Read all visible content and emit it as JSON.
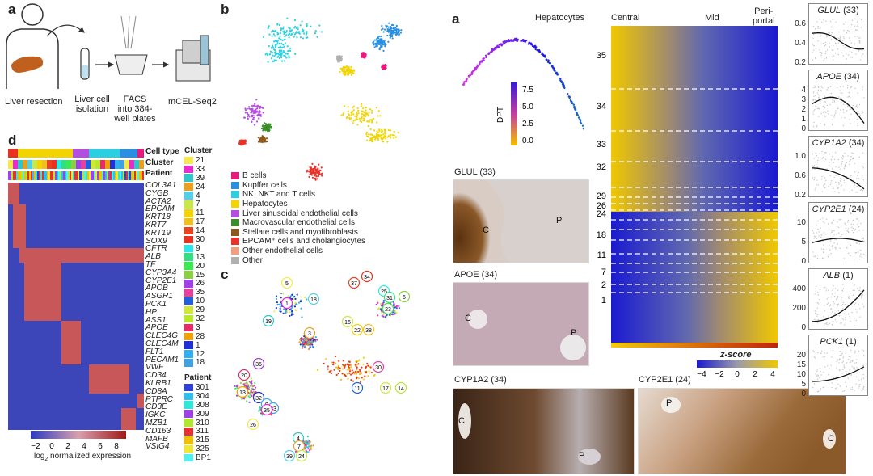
{
  "left_panels": {
    "a_label": "a",
    "b_label": "b",
    "c_label": "c",
    "d_label": "d",
    "workflow": {
      "steps": [
        "Liver resection",
        "Liver cell\nisolation",
        "FACS\ninto 384-\nwell plates",
        "mCEL-Seq2"
      ]
    },
    "tsne_b_legend": [
      {
        "label": "B cells",
        "color": "#e8197d"
      },
      {
        "label": "Kupffer cells",
        "color": "#2a8fe0"
      },
      {
        "label": "NK, NKT and T cells",
        "color": "#2ad0e0"
      },
      {
        "label": "Hepatocytes",
        "color": "#f2d400"
      },
      {
        "label": "Liver sinusoidal endothelial cells",
        "color": "#b44ee0"
      },
      {
        "label": "Macrovascular endothelial cells",
        "color": "#3a8f2a"
      },
      {
        "label": "Stellate cells and myofibroblasts",
        "color": "#8c5a1e"
      },
      {
        "label": "EPCAM⁺ cells and cholangiocytes",
        "color": "#e8322a"
      },
      {
        "label": "Other endothelial cells",
        "color": "#f0a080"
      },
      {
        "label": "Other",
        "color": "#b0b0b0"
      }
    ],
    "tsne_c_clusters": [
      "5",
      "1",
      "19",
      "3",
      "18",
      "16",
      "22",
      "38",
      "37",
      "34",
      "25",
      "31",
      "23",
      "6",
      "36",
      "30",
      "11",
      "17",
      "14",
      "20",
      "13",
      "32",
      "9",
      "33",
      "26",
      "35",
      "4",
      "7",
      "39",
      "24"
    ],
    "heatmap": {
      "bar_labels": [
        "Cell type",
        "Cluster",
        "Patient"
      ],
      "genes": [
        "COL3A1",
        "CYGB",
        "ACTA2",
        "EPCAM",
        "KRT18",
        "KRT7",
        "KRT19",
        "SOX9",
        "CFTR",
        "ALB",
        "TF",
        "CYP3A4",
        "CYP2E1",
        "APOB",
        "ASGR1",
        "PCK1",
        "HP",
        "ASS1",
        "APOE",
        "CLEC4G",
        "CLEC4M",
        "FLT1",
        "PECAM1",
        "VWF",
        "CD34",
        "KLRB1",
        "CD8A",
        "PTPRC",
        "CD3E",
        "IGKC",
        "MZB1",
        "CD163",
        "MAFB",
        "VSIG4"
      ],
      "scale_ticks": [
        "−2",
        "0",
        "2",
        "4",
        "6",
        "8"
      ],
      "scale_label": "log",
      "scale_label_sub": "2",
      "scale_label_rest": " normalized expression"
    },
    "cluster_legend": {
      "title": "Cluster",
      "items": [
        {
          "label": "21",
          "color": "#f5e84a"
        },
        {
          "label": "33",
          "color": "#e82ad0"
        },
        {
          "label": "39",
          "color": "#2ac8c8"
        },
        {
          "label": "24",
          "color": "#e8a020"
        },
        {
          "label": "4",
          "color": "#50d0e8"
        },
        {
          "label": "7",
          "color": "#c8e84a"
        },
        {
          "label": "11",
          "color": "#f2d400"
        },
        {
          "label": "17",
          "color": "#f0c020"
        },
        {
          "label": "14",
          "color": "#e8421e"
        },
        {
          "label": "30",
          "color": "#e8321e"
        },
        {
          "label": "9",
          "color": "#2ae8e8"
        },
        {
          "label": "13",
          "color": "#30e080"
        },
        {
          "label": "20",
          "color": "#3ae850"
        },
        {
          "label": "15",
          "color": "#8ad040"
        },
        {
          "label": "26",
          "color": "#a040e8"
        },
        {
          "label": "35",
          "color": "#e840a0"
        },
        {
          "label": "10",
          "color": "#2060e0"
        },
        {
          "label": "29",
          "color": "#d0e83a"
        },
        {
          "label": "32",
          "color": "#b8e82a"
        },
        {
          "label": "3",
          "color": "#e82a6a"
        },
        {
          "label": "28",
          "color": "#f0a000"
        },
        {
          "label": "1",
          "color": "#2030d8"
        },
        {
          "label": "12",
          "color": "#30b0f0"
        },
        {
          "label": "18",
          "color": "#40a0e0"
        }
      ]
    },
    "patient_legend": {
      "title": "Patient",
      "items": [
        {
          "label": "301",
          "color": "#3040d8"
        },
        {
          "label": "304",
          "color": "#30c0f0"
        },
        {
          "label": "308",
          "color": "#30e8d8"
        },
        {
          "label": "309",
          "color": "#a040e8"
        },
        {
          "label": "310",
          "color": "#b0e830"
        },
        {
          "label": "311",
          "color": "#e83030"
        },
        {
          "label": "315",
          "color": "#f0c000"
        },
        {
          "label": "325",
          "color": "#f0e830"
        },
        {
          "label": "BP1",
          "color": "#50f0f0"
        }
      ]
    }
  },
  "right_panels": {
    "a_label": "a",
    "trajectory": {
      "title": "Hepatocytes",
      "legend_title": "DPT",
      "legend_ticks": [
        "7.5",
        "5.0",
        "2.5",
        "0.0"
      ]
    },
    "ihc": [
      {
        "title": "GLUL (33)",
        "labels": [
          "C",
          "P"
        ]
      },
      {
        "title": "APOE (34)",
        "labels": [
          "C",
          "P"
        ]
      },
      {
        "title": "CYP1A2 (34)",
        "labels": [
          "C",
          "P"
        ]
      },
      {
        "title": "CYP2E1 (24)",
        "labels": [
          "P",
          "C"
        ]
      }
    ],
    "zonation_heatmap": {
      "header": [
        "Central",
        "Mid",
        "Peri-",
        "portal"
      ],
      "row_labels": [
        "35",
        "34",
        "33",
        "32",
        "29",
        "26",
        "24",
        "18",
        "11",
        "7",
        "2",
        "1"
      ],
      "zscore_title": "z-score",
      "zscore_ticks": [
        "−4",
        "−2",
        "0",
        "2",
        "4"
      ]
    },
    "gene_curves": [
      {
        "gene": "GLUL",
        "cluster": " (33)",
        "yticks": [
          "0.6",
          "0.4",
          "0.2"
        ]
      },
      {
        "gene": "APOE",
        "cluster": " (34)",
        "yticks": [
          "4",
          "3",
          "2",
          "1",
          "0"
        ]
      },
      {
        "gene": "CYP1A2",
        "cluster": " (34)",
        "yticks": [
          "1.0",
          "0.6",
          "0.2"
        ]
      },
      {
        "gene": "CYP2E1",
        "cluster": " (24)",
        "yticks": [
          "10",
          "5",
          "0"
        ]
      },
      {
        "gene": "ALB",
        "cluster": " (1)",
        "yticks": [
          "400",
          "200",
          "0"
        ]
      },
      {
        "gene": "PCK1",
        "cluster": " (1)",
        "yticks": [
          "20",
          "15",
          "10",
          "5",
          "0"
        ]
      }
    ]
  },
  "colors": {
    "heat_low": "#3a3ab8",
    "heat_high": "#c83a2a",
    "z_low": "#1a1ad0",
    "z_high": "#f0c800"
  }
}
